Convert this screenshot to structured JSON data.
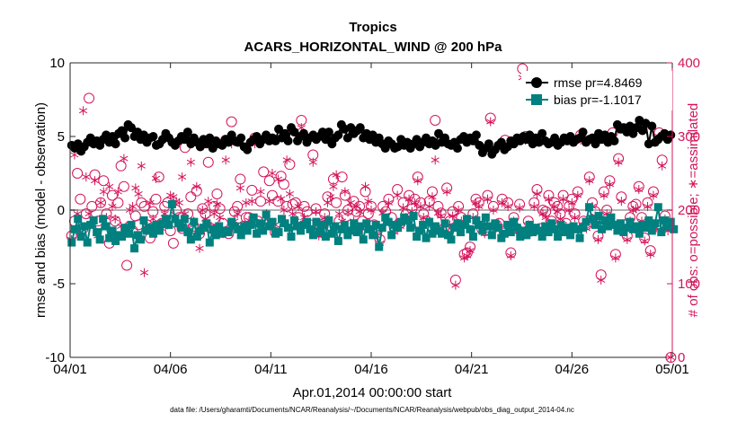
{
  "chart_data": {
    "type": "line",
    "title": "Tropics",
    "subtitle": "ACARS_HORIZONTAL_WIND @ 200 hPa",
    "xlabel": "Apr.01,2014 00:00:00 start",
    "ylabel": "rmse and bias (model - observation)",
    "y2label": "# of obs: o=possible; ∗=assimilated",
    "footnote": "data file: /Users/gharamti/Documents/NCAR/Reanalysis/~/Documents/NCAR/Reanalysis/webpub/obs_diag_output_2014-04.nc",
    "x_tick_labels": [
      "04/01",
      "04/06",
      "04/11",
      "04/16",
      "04/21",
      "04/26",
      "05/01"
    ],
    "y_tick_labels": [
      "-10",
      "-5",
      "0",
      "5",
      "10"
    ],
    "y2_tick_labels": [
      "0",
      "100",
      "200",
      "300",
      "400"
    ],
    "xlim": [
      0,
      30
    ],
    "ylim": [
      -10,
      10
    ],
    "y2lim": [
      0,
      400
    ],
    "grid": false,
    "zero_line": true,
    "legend_position": "top-right",
    "legend": [
      "rmse pr=4.8469",
      "bias pr=-1.1017"
    ],
    "colors": {
      "rmse": "#000000",
      "bias": "#00807f",
      "obs": "#d4145a",
      "zero_line": "#b3b3b3"
    },
    "series": [
      {
        "name": "rmse pr=4.8469",
        "axis": "left",
        "marker": "circle",
        "values": [
          4.4,
          4.2,
          4.5,
          4.0,
          4.3,
          4.6,
          4.9,
          4.5,
          4.7,
          4.4,
          4.8,
          5.1,
          4.6,
          5.0,
          4.5,
          5.2,
          5.4,
          4.9,
          5.8,
          5.6,
          5.0,
          5.3,
          4.8,
          5.1,
          4.6,
          4.9,
          5.0,
          4.4,
          4.5,
          4.8,
          5.2,
          4.9,
          4.6,
          4.4,
          4.7,
          5.0,
          4.8,
          5.3,
          4.5,
          4.9,
          4.6,
          4.3,
          4.8,
          4.5,
          4.9,
          4.2,
          4.7,
          4.5,
          4.4,
          4.8,
          4.6,
          5.1,
          4.7,
          4.6,
          4.9,
          4.3,
          4.1,
          4.6,
          4.8,
          5.0,
          4.5,
          4.8,
          5.1,
          4.7,
          4.9,
          4.7,
          5.5,
          4.9,
          5.2,
          4.7,
          5.6,
          5.3,
          4.7,
          5.0,
          5.2,
          4.6,
          4.9,
          5.1,
          4.8,
          5.0,
          5.3,
          4.8,
          5.3,
          4.5,
          4.9,
          5.1,
          5.8,
          5.5,
          4.9,
          5.6,
          5.2,
          5.4,
          5.6,
          4.9,
          5.2,
          4.8,
          5.1,
          4.6,
          4.9,
          4.5,
          4.2,
          4.7,
          4.5,
          4.2,
          4.3,
          4.8,
          4.4,
          4.6,
          4.2,
          4.5,
          4.8,
          4.3,
          4.6,
          4.9,
          4.5,
          4.7,
          4.4,
          5.2,
          4.6,
          4.9,
          4.5,
          4.4,
          4.6,
          4.2,
          4.8,
          5.0,
          4.6,
          4.9,
          4.7,
          5.1,
          4.4,
          3.9,
          4.2,
          4.5,
          3.8,
          4.1,
          4.4,
          4.6,
          4.1,
          4.3,
          4.7,
          4.5,
          4.9,
          4.7,
          5.0,
          4.8,
          5.1,
          4.5,
          4.9,
          4.6,
          5.2,
          4.7,
          4.5,
          4.6,
          4.9,
          4.4,
          4.6,
          4.9,
          4.7,
          5.0,
          4.6,
          4.8,
          4.9,
          5.3,
          4.6,
          4.8,
          4.9,
          4.5,
          5.2,
          4.8,
          5.1,
          4.6,
          5.0,
          4.7,
          5.8,
          5.5,
          5.6,
          5.3,
          5.7,
          5.2,
          5.6,
          6.1,
          5.4,
          5.9,
          4.5,
          5.7,
          4.6,
          4.8,
          5.0,
          5.2,
          4.8,
          5.1
        ]
      },
      {
        "name": "bias pr=-1.1017",
        "axis": "left",
        "marker": "square",
        "values": [
          -2.2,
          -1.3,
          -0.6,
          -1.8,
          -1.1,
          -2.2,
          -1.0,
          -0.7,
          -1.5,
          -2.0,
          -0.6,
          -1.1,
          -1.9,
          -1.4,
          -2.1,
          -1.7,
          -1.8,
          -1.2,
          -1.6,
          -1.0,
          -2.6,
          -1.7,
          -2.0,
          -0.7,
          -1.4,
          -1.2,
          -1.6,
          -1.0,
          -1.4,
          -0.9,
          -0.6,
          -1.0,
          0.4,
          -0.6,
          -0.9,
          -1.2,
          -0.6,
          -1.5,
          -2.0,
          -0.8,
          -1.8,
          -1.4,
          -1.2,
          -0.9,
          -2.2,
          -1.3,
          -1.7,
          -1.1,
          -1.6,
          -1.4,
          -1.5,
          -0.8,
          -1.1,
          -1.3,
          -1.7,
          -1.1,
          -1.4,
          -1.0,
          -0.5,
          -1.6,
          -0.9,
          -1.4,
          -0.3,
          -1.1,
          -0.8,
          -1.6,
          -1.5,
          -0.6,
          -0.9,
          -1.2,
          -1.8,
          -0.7,
          -1.1,
          -1.4,
          -1.0,
          -0.8,
          -1.3,
          -1.7,
          -0.8,
          -1.5,
          -1.0,
          -1.8,
          -0.7,
          -1.6,
          -1.1,
          -2.1,
          -1.3,
          -1.0,
          -1.7,
          -1.4,
          -0.9,
          -1.5,
          -1.1,
          -2.0,
          -0.9,
          -1.3,
          -1.7,
          -1.0,
          -2.5,
          -1.2,
          -0.5,
          -0.8,
          -1.7,
          -1.0,
          -1.2,
          -0.8,
          -0.5,
          -0.7,
          -1.2,
          -0.4,
          -1.8,
          -1.4,
          -1.0,
          -1.9,
          -0.8,
          -1.6,
          -1.1,
          -1.4,
          -1.6,
          -0.9,
          -1.7,
          -2.0,
          -1.2,
          -0.9,
          -1.5,
          -1.0,
          -0.6,
          -1.3,
          -1.8,
          -0.7,
          -1.0,
          -1.4,
          -0.5,
          -1.1,
          -1.7,
          -0.9,
          -1.2,
          -1.9,
          -1.6,
          -1.0,
          -1.5,
          -0.8,
          -1.2,
          -1.8,
          -1.4,
          -1.7,
          -1.0,
          -1.5,
          -1.2,
          -1.4,
          -1.8,
          -1.1,
          -1.5,
          -0.9,
          -1.3,
          -1.8,
          -1.0,
          -1.5,
          -1.2,
          -1.7,
          -1.1,
          -1.3,
          -1.9,
          -1.2,
          -0.8,
          0.2,
          -0.6,
          -1.0,
          -0.4,
          -1.3,
          -0.7,
          -1.1,
          -0.5,
          -1.0,
          -1.4,
          -0.9,
          -1.5,
          -1.2,
          -0.8,
          -1.3,
          -1.1,
          -1.6,
          -1.0,
          -1.2,
          -0.7,
          -1.4,
          -0.9,
          0.2,
          -1.5,
          -0.7,
          -1.1,
          -0.8,
          -1.3
        ]
      },
      {
        "name": "possible",
        "axis": "right",
        "marker": "open-circle",
        "values": [
          165,
          185,
          250,
          215,
          175,
          195,
          352,
          205,
          248,
          185,
          210,
          240,
          195,
          155,
          220,
          185,
          210,
          260,
          232,
          125,
          178,
          172,
          192,
          180,
          210,
          205,
          180,
          162,
          198,
          215,
          245,
          182,
          205,
          210,
          172,
          155,
          200,
          190,
          175,
          285,
          195,
          218,
          178,
          226,
          168,
          202,
          195,
          265,
          175,
          205,
          222,
          202,
          182,
          295,
          168,
          320,
          198,
          205,
          242,
          178,
          190,
          190,
          227,
          298,
          185,
          212,
          252,
          180,
          240,
          220,
          170,
          212,
          246,
          235,
          205,
          262,
          208,
          210,
          190,
          322,
          205,
          198,
          180,
          275,
          202,
          170,
          180,
          195,
          218,
          175,
          242,
          210,
          185,
          245,
          220,
          200,
          180,
          212,
          198,
          205,
          185,
          225,
          195,
          205,
          180,
          175,
          160,
          205,
          198,
          215,
          190,
          175,
          228,
          182,
          210,
          195,
          220,
          202,
          215,
          245,
          210,
          195,
          185,
          212,
          225,
          322,
          205,
          196,
          175,
          230,
          185,
          198,
          105,
          205,
          190,
          140,
          142,
          150,
          195,
          215,
          210,
          175,
          172,
          220,
          325,
          205,
          180,
          182,
          215,
          295,
          210,
          142,
          190,
          175,
          208,
          392,
          300,
          185,
          175,
          210,
          228,
          175,
          200,
          198,
          220,
          185,
          210,
          205,
          195,
          220,
          182,
          205,
          215,
          195,
          225,
          302,
          185,
          180,
          245,
          210,
          198,
          165,
          112,
          225,
          200,
          240,
          305,
          140,
          270,
          218,
          180,
          165,
          190,
          205,
          208,
          232,
          190,
          162,
          210,
          145,
          225,
          180,
          305,
          268,
          192,
          178,
          0
        ]
      },
      {
        "name": "assimilated",
        "axis": "right",
        "marker": "asterisk",
        "values": [
          160,
          275,
          195,
          170,
          335,
          245,
          195,
          182,
          240,
          165,
          210,
          225,
          190,
          232,
          205,
          188,
          225,
          178,
          270,
          310,
          200,
          205,
          230,
          222,
          260,
          115,
          180,
          210,
          188,
          243,
          290,
          175,
          195,
          180,
          220,
          218,
          212,
          210,
          245,
          195,
          175,
          265,
          185,
          232,
          148,
          200,
          188,
          212,
          178,
          195,
          208,
          190,
          168,
          268,
          175,
          290,
          185,
          195,
          230,
          172,
          210,
          186,
          212,
          290,
          182,
          225,
          178,
          195,
          212,
          250,
          180,
          242,
          215,
          200,
          268,
          222,
          195,
          185,
          205,
          312,
          190,
          180,
          175,
          265,
          198,
          165,
          178,
          190,
          210,
          218,
          232,
          248,
          195,
          185,
          225,
          197,
          210,
          185,
          205,
          198,
          175,
          232,
          212,
          200,
          175,
          165,
          155,
          196,
          188,
          210,
          182,
          170,
          220,
          178,
          203,
          190,
          215,
          198,
          210,
          240,
          205,
          190,
          182,
          205,
          218,
          268,
          196,
          192,
          170,
          225,
          180,
          192,
          98,
          200,
          185,
          135,
          138,
          145,
          190,
          210,
          205,
          172,
          168,
          215,
          320,
          200,
          176,
          178,
          210,
          288,
          205,
          138,
          185,
          170,
          203,
          380,
          295,
          180,
          170,
          205,
          222,
          170,
          195,
          190,
          215,
          180,
          205,
          198,
          188,
          215,
          178,
          200,
          210,
          190,
          220,
          295,
          180,
          175,
          240,
          205,
          192,
          160,
          105,
          220,
          195,
          235,
          298,
          135,
          265,
          212,
          175,
          160,
          185,
          200,
          202,
          228,
          185,
          158,
          205,
          140,
          220,
          176,
          300,
          260,
          188,
          172,
          0
        ]
      }
    ]
  }
}
